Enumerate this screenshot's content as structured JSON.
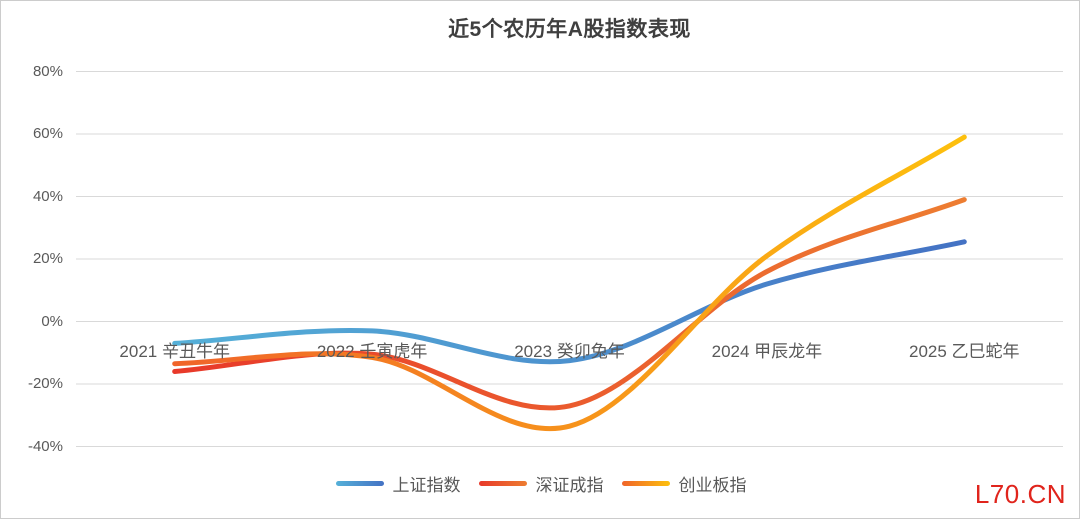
{
  "title": "近5个农历年A股指数表现",
  "watermark": "L70.CN",
  "colors": {
    "title_text": "#3f3f3f",
    "axis_text": "#595959",
    "gridline": "#d9d9d9",
    "watermark_red": "#e0241c",
    "background": "#ffffff"
  },
  "chart_data": {
    "type": "line",
    "title": "近5个农历年A股指数表现",
    "categories": [
      "2021 辛丑牛年",
      "2022 壬寅虎年",
      "2023 癸卯兔年",
      "2024 甲辰龙年",
      "2025 乙巳蛇年"
    ],
    "unit": "%",
    "series": [
      {
        "name": "上证指数",
        "slug": "shanghai-composite-index",
        "values": [
          -7,
          -3,
          -12.5,
          12,
          25.5
        ],
        "color_start": "#55b0d8",
        "color_end": "#4472c4"
      },
      {
        "name": "深证成指",
        "slug": "shenzhen-component-index",
        "values": [
          -16,
          -10.5,
          -27,
          16,
          39
        ],
        "color_start": "#e8392a",
        "color_end": "#ed7d31"
      },
      {
        "name": "创业板指",
        "slug": "chinext-index",
        "values": [
          -13.5,
          -11.5,
          -33.5,
          21,
          59
        ],
        "color_start": "#f0642a",
        "color_end": "#fdc00d"
      }
    ],
    "y_ticks": [
      "80%",
      "60%",
      "40%",
      "20%",
      "0%",
      "-20%",
      "-40%"
    ],
    "y_tick_values": [
      80,
      60,
      40,
      20,
      0,
      -20,
      -40
    ],
    "ylim": [
      -40,
      80
    ],
    "xlabel": "",
    "ylabel": "",
    "grid": true,
    "smooth": true,
    "legend_position": "bottom"
  }
}
